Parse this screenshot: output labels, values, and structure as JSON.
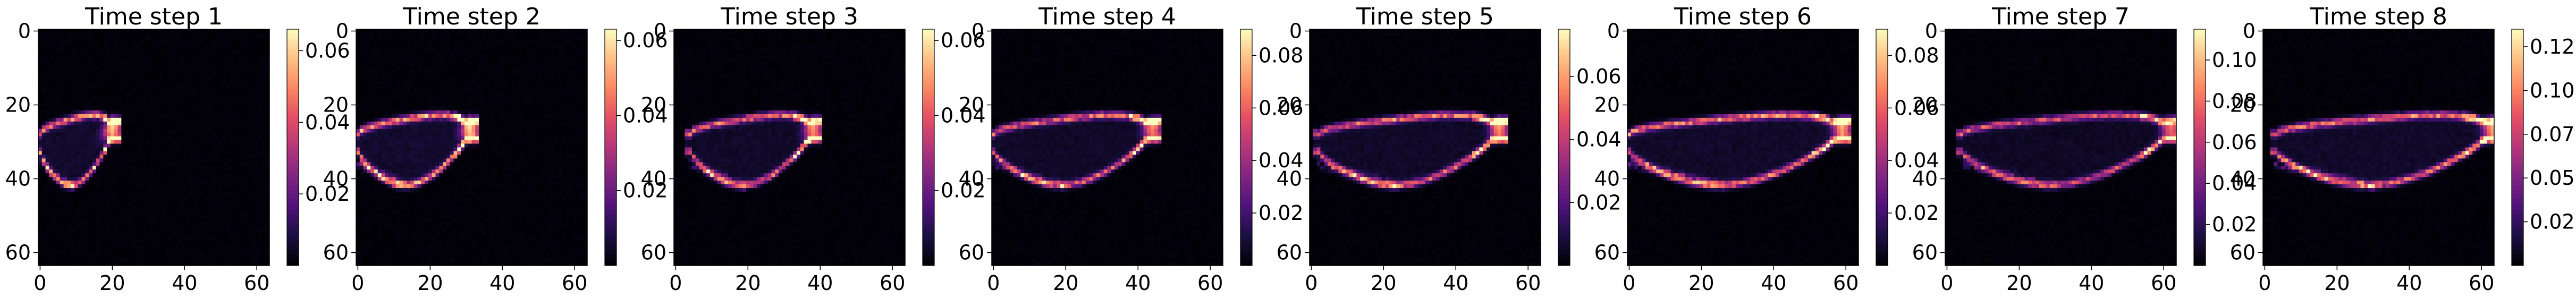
{
  "chart_data": {
    "type": "heatmap",
    "colormap": "magma",
    "panel_count": 8,
    "image_size": 64,
    "x_ticks": [
      0,
      20,
      40,
      60
    ],
    "y_ticks": [
      0,
      20,
      40,
      60
    ],
    "panels": [
      {
        "title": "Time step 1",
        "colorbar_ticks": [
          "0.02",
          "0.04",
          "0.06"
        ],
        "vmin": 0.0,
        "vmax": 0.066,
        "front_x": 20,
        "tail_x": 0,
        "ridge_value": 0.06
      },
      {
        "title": "Time step 2",
        "colorbar_ticks": [
          "0.02",
          "0.04",
          "0.06"
        ],
        "vmin": 0.0,
        "vmax": 0.063,
        "front_x": 31,
        "tail_x": 0,
        "ridge_value": 0.058
      },
      {
        "title": "Time step 3",
        "colorbar_ticks": [
          "0.02",
          "0.04",
          "0.06"
        ],
        "vmin": 0.0,
        "vmax": 0.063,
        "front_x": 38,
        "tail_x": 4,
        "ridge_value": 0.05
      },
      {
        "title": "Time step 4",
        "colorbar_ticks": [
          "0.02",
          "0.04",
          "0.06",
          "0.08"
        ],
        "vmin": 0.0,
        "vmax": 0.09,
        "front_x": 44,
        "tail_x": 0,
        "ridge_value": 0.07
      },
      {
        "title": "Time step 5",
        "colorbar_ticks": [
          "0.02",
          "0.04",
          "0.06"
        ],
        "vmin": 0.0,
        "vmax": 0.075,
        "front_x": 52,
        "tail_x": 2,
        "ridge_value": 0.06
      },
      {
        "title": "Time step 6",
        "colorbar_ticks": [
          "0.02",
          "0.04",
          "0.06",
          "0.08"
        ],
        "vmin": 0.0,
        "vmax": 0.09,
        "front_x": 59,
        "tail_x": 0,
        "ridge_value": 0.075
      },
      {
        "title": "Time step 7",
        "colorbar_ticks": [
          "0.02",
          "0.04",
          "0.06",
          "0.08",
          "0.10"
        ],
        "vmin": 0.0,
        "vmax": 0.115,
        "front_x": 62,
        "tail_x": 4,
        "ridge_value": 0.08
      },
      {
        "title": "Time step 8",
        "colorbar_ticks": [
          "0.025",
          "0.050",
          "0.075",
          "0.100",
          "0.125"
        ],
        "vmin": 0.0,
        "vmax": 0.135,
        "front_x": 63,
        "tail_x": 3,
        "ridge_value": 0.11
      }
    ]
  }
}
